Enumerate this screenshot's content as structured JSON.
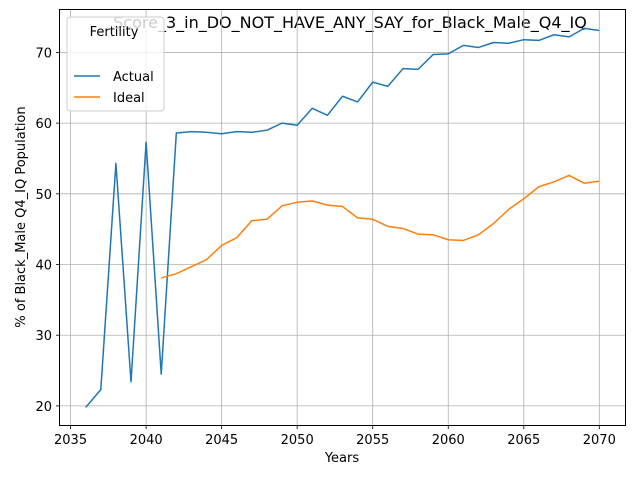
{
  "chart_data": {
    "type": "line",
    "title": "Score_3_in_DO_NOT_HAVE_ANY_SAY_for_Black_Male_Q4_IQ",
    "xlabel": "Years",
    "ylabel": "% of Black_Male Q4_IQ Population",
    "xlim": [
      2034.3,
      2071.7
    ],
    "ylim": [
      17.3,
      76.0
    ],
    "xticks": [
      2035,
      2040,
      2045,
      2050,
      2055,
      2060,
      2065,
      2070
    ],
    "yticks": [
      20,
      30,
      40,
      50,
      60,
      70
    ],
    "grid": true,
    "legend": {
      "title": "Fertility",
      "position": "top-left"
    },
    "series": [
      {
        "name": "Actual",
        "color": "#1f77b4",
        "x": [
          2036,
          2037,
          2038,
          2039,
          2040,
          2041,
          2042,
          2043,
          2044,
          2045,
          2046,
          2047,
          2048,
          2049,
          2050,
          2051,
          2052,
          2053,
          2054,
          2055,
          2056,
          2057,
          2058,
          2059,
          2060,
          2061,
          2062,
          2063,
          2064,
          2065,
          2066,
          2067,
          2068,
          2069,
          2070
        ],
        "y": [
          19.8,
          22.3,
          54.3,
          23.4,
          57.3,
          24.5,
          58.6,
          58.8,
          58.7,
          58.5,
          58.8,
          58.7,
          59.0,
          60.0,
          59.7,
          62.1,
          61.1,
          63.8,
          63.0,
          65.8,
          65.2,
          67.7,
          67.6,
          69.7,
          69.8,
          71.0,
          70.7,
          71.4,
          71.3,
          71.8,
          71.7,
          72.5,
          72.2,
          73.4,
          73.1
        ]
      },
      {
        "name": "Ideal",
        "color": "#ff7f0e",
        "x": [
          2041,
          2042,
          2043,
          2044,
          2045,
          2046,
          2047,
          2048,
          2049,
          2050,
          2051,
          2052,
          2053,
          2054,
          2055,
          2056,
          2057,
          2058,
          2059,
          2060,
          2061,
          2062,
          2063,
          2064,
          2065,
          2066,
          2067,
          2068,
          2069,
          2070
        ],
        "y": [
          38.1,
          38.7,
          39.7,
          40.7,
          42.7,
          43.8,
          46.2,
          46.4,
          48.3,
          48.8,
          49.0,
          48.4,
          48.2,
          46.6,
          46.4,
          45.4,
          45.1,
          44.3,
          44.2,
          43.5,
          43.4,
          44.2,
          45.8,
          47.8,
          49.3,
          51.0,
          51.7,
          52.6,
          51.5,
          51.8
        ]
      }
    ]
  }
}
